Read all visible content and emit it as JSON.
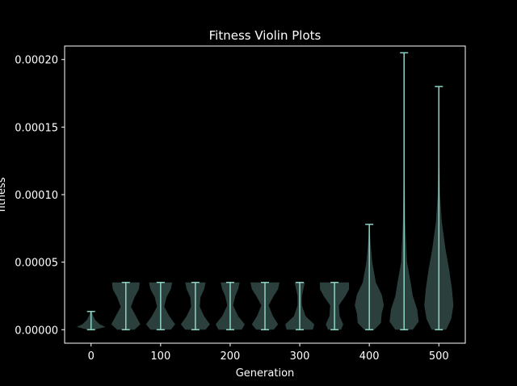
{
  "chart_data": {
    "type": "violin",
    "title": "Fitness Violin Plots",
    "xlabel": "Generation",
    "ylabel": "fitness",
    "xlim": [
      -38,
      538
    ],
    "ylim": [
      -1e-05,
      0.00021
    ],
    "xticks": [
      0,
      100,
      200,
      300,
      400,
      500
    ],
    "xtick_labels": [
      "0",
      "100",
      "200",
      "300",
      "400",
      "500"
    ],
    "yticks": [
      0.0,
      5e-05,
      0.0001,
      0.00015,
      0.0002
    ],
    "ytick_labels": [
      "0.00000",
      "0.00005",
      "0.00010",
      "0.00015",
      "0.00020"
    ],
    "grid": false,
    "colors": {
      "background": "#000000",
      "foreground": "#ffffff",
      "violin_fill": "#8dd3c7",
      "violin_line": "#8dd3c7"
    },
    "violins": [
      {
        "generation": 0,
        "min": 0.0,
        "max": 1.35e-05,
        "profile": [
          [
            0.0,
            0.2
          ],
          [
            2e-06,
            1.0
          ],
          [
            4e-06,
            0.6
          ],
          [
            7e-06,
            0.3
          ],
          [
            1e-05,
            0.15
          ],
          [
            1.35e-05,
            0.05
          ]
        ]
      },
      {
        "generation": 50,
        "min": 0.0,
        "max": 3.5e-05,
        "profile": [
          [
            0.0,
            0.6
          ],
          [
            4e-06,
            1.0
          ],
          [
            1e-05,
            0.7
          ],
          [
            1.7e-05,
            0.35
          ],
          [
            2.4e-05,
            0.6
          ],
          [
            3e-05,
            0.9
          ],
          [
            3.5e-05,
            0.95
          ]
        ]
      },
      {
        "generation": 100,
        "min": 0.0,
        "max": 3.5e-05,
        "profile": [
          [
            0.0,
            0.7
          ],
          [
            4e-06,
            1.0
          ],
          [
            1e-05,
            0.6
          ],
          [
            1.7e-05,
            0.25
          ],
          [
            2.4e-05,
            0.4
          ],
          [
            3e-05,
            0.7
          ],
          [
            3.5e-05,
            0.8
          ]
        ]
      },
      {
        "generation": 150,
        "min": 0.0,
        "max": 3.5e-05,
        "profile": [
          [
            0.0,
            0.7
          ],
          [
            4e-06,
            1.0
          ],
          [
            1e-05,
            0.6
          ],
          [
            1.7e-05,
            0.3
          ],
          [
            2.4e-05,
            0.35
          ],
          [
            3e-05,
            0.6
          ],
          [
            3.5e-05,
            0.7
          ]
        ]
      },
      {
        "generation": 200,
        "min": 0.0,
        "max": 3.5e-05,
        "profile": [
          [
            0.0,
            0.8
          ],
          [
            4e-06,
            1.0
          ],
          [
            1e-05,
            0.55
          ],
          [
            1.8e-05,
            0.2
          ],
          [
            2.5e-05,
            0.35
          ],
          [
            3e-05,
            0.55
          ],
          [
            3.5e-05,
            0.65
          ]
        ]
      },
      {
        "generation": 250,
        "min": 0.0,
        "max": 3.5e-05,
        "profile": [
          [
            0.0,
            0.6
          ],
          [
            4e-06,
            0.9
          ],
          [
            1e-05,
            0.55
          ],
          [
            1.8e-05,
            0.25
          ],
          [
            2.5e-05,
            0.6
          ],
          [
            3e-05,
            0.9
          ],
          [
            3.5e-05,
            1.0
          ]
        ]
      },
      {
        "generation": 300,
        "min": 0.0,
        "max": 3.5e-05,
        "profile": [
          [
            0.0,
            0.9
          ],
          [
            4e-06,
            1.0
          ],
          [
            1e-05,
            0.4
          ],
          [
            1.8e-05,
            0.15
          ],
          [
            2.5e-05,
            0.15
          ],
          [
            3e-05,
            0.25
          ],
          [
            3.5e-05,
            0.35
          ]
        ]
      },
      {
        "generation": 350,
        "min": 0.0,
        "max": 3.5e-05,
        "profile": [
          [
            0.0,
            0.45
          ],
          [
            4e-06,
            0.6
          ],
          [
            1e-05,
            0.35
          ],
          [
            1.8e-05,
            0.3
          ],
          [
            2.5e-05,
            0.75
          ],
          [
            3e-05,
            1.0
          ],
          [
            3.5e-05,
            1.0
          ]
        ]
      },
      {
        "generation": 400,
        "min": 0.0,
        "max": 7.8e-05,
        "profile": [
          [
            0.0,
            0.35
          ],
          [
            5e-06,
            0.8
          ],
          [
            1.2e-05,
            0.85
          ],
          [
            1.8e-05,
            1.0
          ],
          [
            2.6e-05,
            0.85
          ],
          [
            3.5e-05,
            0.45
          ],
          [
            5e-05,
            0.2
          ],
          [
            6.5e-05,
            0.08
          ],
          [
            7.8e-05,
            0.02
          ]
        ]
      },
      {
        "generation": 450,
        "min": 0.0,
        "max": 0.000205,
        "profile": [
          [
            0.0,
            0.6
          ],
          [
            6e-06,
            1.0
          ],
          [
            1.5e-05,
            0.9
          ],
          [
            2.5e-05,
            0.6
          ],
          [
            3.5e-05,
            0.45
          ],
          [
            5e-05,
            0.2
          ],
          [
            8e-05,
            0.08
          ],
          [
            0.00012,
            0.03
          ],
          [
            0.00016,
            0.015
          ],
          [
            0.000205,
            0.005
          ]
        ]
      },
      {
        "generation": 500,
        "min": 0.0,
        "max": 0.00018,
        "profile": [
          [
            0.0,
            0.5
          ],
          [
            8e-06,
            0.85
          ],
          [
            1.8e-05,
            1.0
          ],
          [
            3e-05,
            0.9
          ],
          [
            4.5e-05,
            0.7
          ],
          [
            6e-05,
            0.45
          ],
          [
            8e-05,
            0.2
          ],
          [
            0.0001,
            0.08
          ],
          [
            0.00013,
            0.03
          ],
          [
            0.00018,
            0.005
          ]
        ]
      }
    ]
  }
}
